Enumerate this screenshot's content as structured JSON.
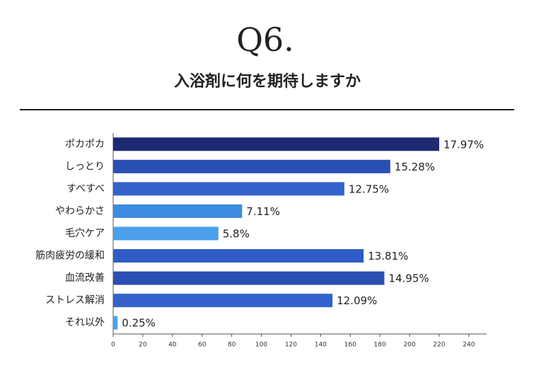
{
  "chart_data": {
    "type": "hbar",
    "title": "Q6.",
    "subtitle": "入浴剤に何を期待しますか",
    "categories": [
      "ポカポカ",
      "しっとり",
      "すべすべ",
      "やわらかさ",
      "毛穴ケア",
      "筋肉疲労の緩和",
      "血流改善",
      "ストレス解消",
      "それ以外"
    ],
    "values": [
      220,
      187,
      156,
      87,
      71,
      169,
      183,
      148,
      3
    ],
    "value_labels": [
      "17.97%",
      "15.28%",
      "12.75%",
      "7.11%",
      "5.8%",
      "13.81%",
      "14.95%",
      "12.09%",
      "0.25%"
    ],
    "colors": [
      "#1e2b72",
      "#2b4fb3",
      "#3463cc",
      "#3b8ce0",
      "#4b9eea",
      "#2f5cc4",
      "#2b4fb3",
      "#3463cc",
      "#4aa2ee"
    ],
    "xlim": [
      0,
      252
    ],
    "xticks": [
      0,
      20,
      40,
      60,
      80,
      100,
      120,
      140,
      160,
      180,
      200,
      220,
      240
    ]
  }
}
